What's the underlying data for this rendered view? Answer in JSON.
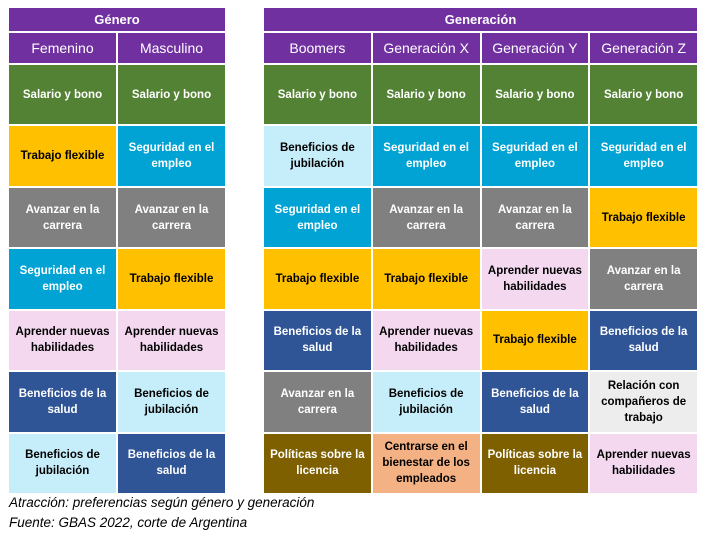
{
  "tables": [
    {
      "title": "Género",
      "columns": [
        "Femenino",
        "Masculino"
      ],
      "rows": [
        [
          {
            "text": "Salario y bono",
            "bg": "#548235"
          },
          {
            "text": "Salario y bono",
            "bg": "#548235"
          }
        ],
        [
          {
            "text": "Trabajo flexible",
            "bg": "#ffc000"
          },
          {
            "text": "Seguridad en el empleo",
            "bg": "#00a3d4"
          }
        ],
        [
          {
            "text": "Avanzar en la carrera",
            "bg": "#808080"
          },
          {
            "text": "Avanzar en la carrera",
            "bg": "#808080"
          }
        ],
        [
          {
            "text": "Seguridad en el empleo",
            "bg": "#00a3d4"
          },
          {
            "text": "Trabajo flexible",
            "bg": "#ffc000"
          }
        ],
        [
          {
            "text": "Aprender nuevas habilidades",
            "bg": "#f3d8ef"
          },
          {
            "text": "Aprender nuevas habilidades",
            "bg": "#f3d8ef"
          }
        ],
        [
          {
            "text": "Beneficios de la salud",
            "bg": "#2f5597"
          },
          {
            "text": "Beneficios de jubilación",
            "bg": "#c6eefa"
          }
        ],
        [
          {
            "text": "Beneficios de jubilación",
            "bg": "#c6eefa"
          },
          {
            "text": "Beneficios de la salud",
            "bg": "#2f5597"
          }
        ]
      ]
    },
    {
      "title": "Generación",
      "columns": [
        "Boomers",
        "Generación X",
        "Generación Y",
        "Generación Z"
      ],
      "rows": [
        [
          {
            "text": "Salario y bono",
            "bg": "#548235"
          },
          {
            "text": "Salario y bono",
            "bg": "#548235"
          },
          {
            "text": "Salario y bono",
            "bg": "#548235"
          },
          {
            "text": "Salario y bono",
            "bg": "#548235"
          }
        ],
        [
          {
            "text": "Beneficios de jubilación",
            "bg": "#c6eefa"
          },
          {
            "text": "Seguridad en el empleo",
            "bg": "#00a3d4"
          },
          {
            "text": "Seguridad en el empleo",
            "bg": "#00a3d4"
          },
          {
            "text": "Seguridad en el empleo",
            "bg": "#00a3d4"
          }
        ],
        [
          {
            "text": "Seguridad en el empleo",
            "bg": "#00a3d4"
          },
          {
            "text": "Avanzar en la carrera",
            "bg": "#808080"
          },
          {
            "text": "Avanzar en la carrera",
            "bg": "#808080"
          },
          {
            "text": "Trabajo flexible",
            "bg": "#ffc000"
          }
        ],
        [
          {
            "text": "Trabajo flexible",
            "bg": "#ffc000"
          },
          {
            "text": "Trabajo flexible",
            "bg": "#ffc000"
          },
          {
            "text": "Aprender nuevas habilidades",
            "bg": "#f3d8ef"
          },
          {
            "text": "Avanzar en la carrera",
            "bg": "#808080"
          }
        ],
        [
          {
            "text": "Beneficios de la salud",
            "bg": "#2f5597"
          },
          {
            "text": "Aprender nuevas habilidades",
            "bg": "#f3d8ef"
          },
          {
            "text": "Trabajo flexible",
            "bg": "#ffc000"
          },
          {
            "text": "Beneficios de la salud",
            "bg": "#2f5597"
          }
        ],
        [
          {
            "text": "Avanzar en la carrera",
            "bg": "#808080"
          },
          {
            "text": "Beneficios de jubilación",
            "bg": "#c6eefa"
          },
          {
            "text": "Beneficios de la salud",
            "bg": "#2f5597"
          },
          {
            "text": "Relación con compañeros de trabajo",
            "bg": "#ededed"
          }
        ],
        [
          {
            "text": "Políticas sobre la licencia",
            "bg": "#7f6000"
          },
          {
            "text": "Centrarse en el bienestar de los empleados",
            "bg": "#f4b183"
          },
          {
            "text": "Políticas sobre la licencia",
            "bg": "#7f6000"
          },
          {
            "text": "Aprender nuevas habilidades",
            "bg": "#f3d8ef"
          }
        ]
      ]
    }
  ],
  "captions": [
    "Atracción: preferencias según género y generación",
    "Fuente: GBAS 2022, corte de Argentina"
  ]
}
